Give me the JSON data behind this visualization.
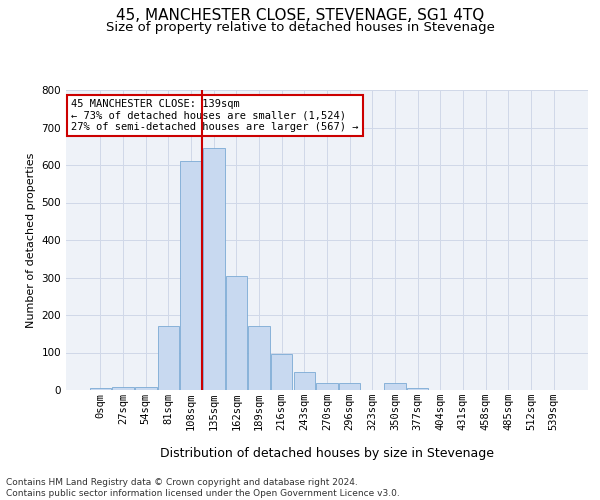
{
  "title": "45, MANCHESTER CLOSE, STEVENAGE, SG1 4TQ",
  "subtitle": "Size of property relative to detached houses in Stevenage",
  "xlabel": "Distribution of detached houses by size in Stevenage",
  "ylabel": "Number of detached properties",
  "bin_labels": [
    "0sqm",
    "27sqm",
    "54sqm",
    "81sqm",
    "108sqm",
    "135sqm",
    "162sqm",
    "189sqm",
    "216sqm",
    "243sqm",
    "270sqm",
    "296sqm",
    "323sqm",
    "350sqm",
    "377sqm",
    "404sqm",
    "431sqm",
    "458sqm",
    "485sqm",
    "512sqm",
    "539sqm"
  ],
  "bar_values": [
    5,
    8,
    8,
    170,
    610,
    645,
    305,
    170,
    95,
    48,
    18,
    18,
    0,
    18,
    5,
    0,
    0,
    0,
    0,
    0,
    0
  ],
  "bar_color": "#c8d9f0",
  "bar_edge_color": "#7baad4",
  "vline_bin_index": 5,
  "annotation_line1": "45 MANCHESTER CLOSE: 139sqm",
  "annotation_line2": "← 73% of detached houses are smaller (1,524)",
  "annotation_line3": "27% of semi-detached houses are larger (567) →",
  "annotation_box_color": "#ffffff",
  "annotation_border_color": "#cc0000",
  "vline_color": "#cc0000",
  "ylim": [
    0,
    800
  ],
  "yticks": [
    0,
    100,
    200,
    300,
    400,
    500,
    600,
    700,
    800
  ],
  "grid_color": "#d0d8e8",
  "bg_color": "#eef2f8",
  "footer_line1": "Contains HM Land Registry data © Crown copyright and database right 2024.",
  "footer_line2": "Contains public sector information licensed under the Open Government Licence v3.0.",
  "title_fontsize": 11,
  "subtitle_fontsize": 9.5,
  "xlabel_fontsize": 9,
  "ylabel_fontsize": 8,
  "tick_fontsize": 7.5,
  "annotation_fontsize": 7.5,
  "footer_fontsize": 6.5
}
